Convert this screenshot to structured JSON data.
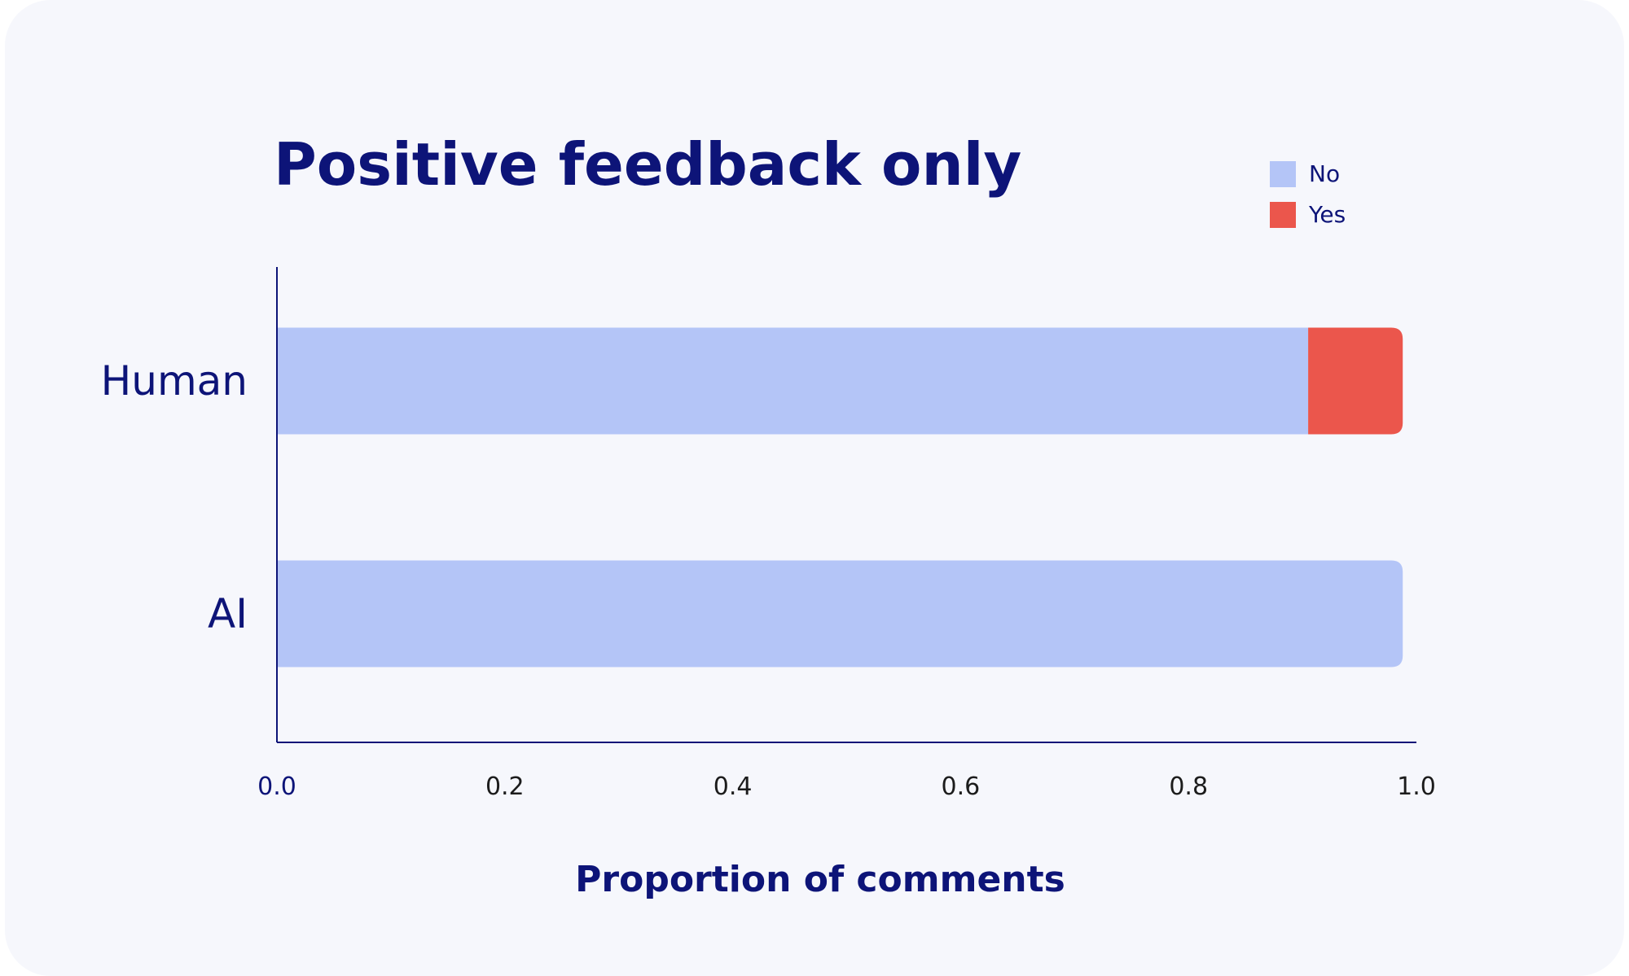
{
  "chart_data": {
    "type": "bar",
    "orientation": "horizontal",
    "stacked": true,
    "title": "Positive feedback only",
    "xlabel": "Proportion of comments",
    "ylabel": "",
    "categories": [
      "Human",
      "AI"
    ],
    "series": [
      {
        "name": "No",
        "values": [
          0.905,
          0.988
        ],
        "color": "#b4c5f7"
      },
      {
        "name": "Yes",
        "values": [
          0.083,
          0.0
        ],
        "color": "#eb564c"
      }
    ],
    "xlim": [
      0.0,
      1.0
    ],
    "xticks": [
      "0.0",
      "0.2",
      "0.4",
      "0.6",
      "0.8",
      "1.0"
    ],
    "legend": {
      "placement": "top-right",
      "entries": [
        "No",
        "Yes"
      ]
    },
    "grid": false
  }
}
